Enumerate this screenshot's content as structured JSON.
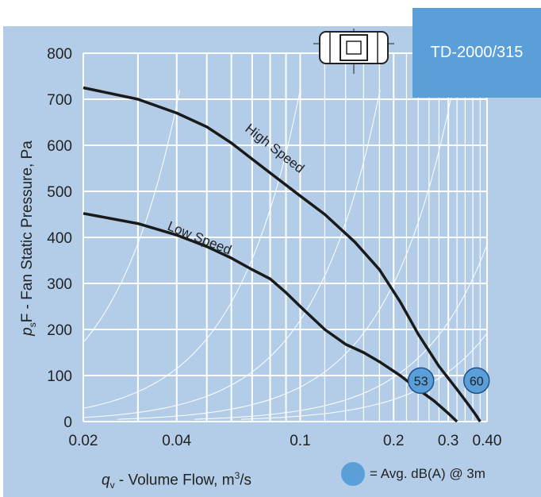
{
  "chart_data": {
    "type": "line",
    "title": "TD-2000/315",
    "xlabel_var": "q",
    "xlabel_sub": "v",
    "xlabel_rest": " - Volume Flow, m",
    "xlabel_sup": "3",
    "xlabel_tail": "/s",
    "ylabel_var": "p",
    "ylabel_sub": "s",
    "ylabel_rest": "F - Fan Static Pressure, Pa",
    "x_scale": "log",
    "xlim": [
      0.02,
      0.4
    ],
    "ylim": [
      0,
      800
    ],
    "x_ticks": [
      0.02,
      0.04,
      0.1,
      0.2,
      0.3,
      0.4
    ],
    "x_tick_labels": [
      "0.02",
      "0.04",
      "0.1",
      "0.2",
      "0.3",
      "0.40"
    ],
    "y_ticks": [
      0,
      100,
      200,
      300,
      400,
      500,
      600,
      700,
      800
    ],
    "y_tick_labels": [
      "0",
      "100",
      "200",
      "300",
      "400",
      "500",
      "600",
      "700",
      "800"
    ],
    "grid": true,
    "series": [
      {
        "name": "High Speed",
        "x": [
          0.02,
          0.03,
          0.04,
          0.05,
          0.06,
          0.07,
          0.08,
          0.1,
          0.12,
          0.15,
          0.18,
          0.21,
          0.24,
          0.28,
          0.32,
          0.35,
          0.37,
          0.38
        ],
        "y": [
          725,
          700,
          670,
          640,
          605,
          570,
          540,
          490,
          450,
          390,
          330,
          260,
          190,
          120,
          70,
          35,
          12,
          0
        ]
      },
      {
        "name": "Low Speed",
        "x": [
          0.02,
          0.03,
          0.04,
          0.05,
          0.06,
          0.07,
          0.08,
          0.09,
          0.1,
          0.12,
          0.14,
          0.16,
          0.18,
          0.21,
          0.24,
          0.27,
          0.3,
          0.32
        ],
        "y": [
          452,
          430,
          405,
          380,
          355,
          330,
          310,
          280,
          250,
          200,
          168,
          150,
          130,
          100,
          70,
          45,
          18,
          0
        ]
      }
    ],
    "sound_markers": [
      {
        "label": "53",
        "x": 0.245,
        "y": 89
      },
      {
        "label": "60",
        "x": 0.37,
        "y": 89
      }
    ],
    "legend_text": "= Avg. dB(A) @ 3m",
    "colors": {
      "panel": "#b3cde9",
      "curve": "#1a1a1a",
      "marker": "#5a9fd8",
      "grid": "#ffffff"
    }
  }
}
